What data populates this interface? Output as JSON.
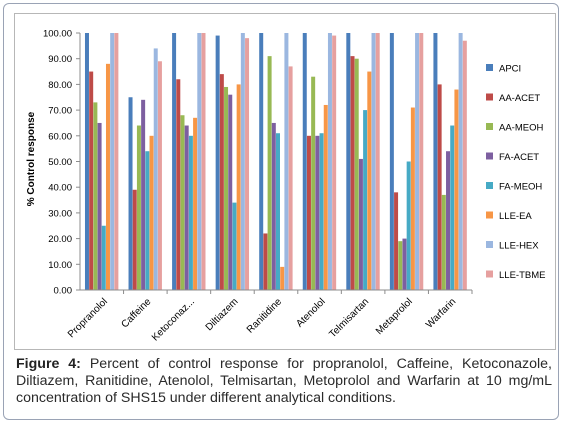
{
  "caption": {
    "label": "Figure 4:",
    "text": "Percent of control response for propranolol, Caffeine, Ketoconazole, Diltiazem, Ranitidine, Atenolol, Telmisartan, Metoprolol and Warfarin at 10 mg/mL concentration of SHS15 under different analytical conditions."
  },
  "chart_data": {
    "type": "bar",
    "ylabel": "% Control response",
    "xlabel": "",
    "title": "",
    "ylim": [
      0,
      100
    ],
    "yticks": [
      "0.00",
      "10.00",
      "20.00",
      "30.00",
      "40.00",
      "50.00",
      "60.00",
      "70.00",
      "80.00",
      "90.00",
      "100.00"
    ],
    "grid": false,
    "legend_position": "right",
    "categories": [
      "Propranolol",
      "Caffeine",
      "Ketoconaz...",
      "Diltiazem",
      "Ranitidine",
      "Atenolol",
      "Telmisartan",
      "Metaprolol",
      "Warfarin"
    ],
    "series": [
      {
        "name": "APCI",
        "color": "#4a7ebb",
        "values": [
          100,
          75,
          100,
          99,
          100,
          100,
          100,
          100,
          100
        ]
      },
      {
        "name": "AA-ACET",
        "color": "#be4b48",
        "values": [
          85,
          39,
          82,
          84,
          22,
          60,
          91,
          38,
          80
        ]
      },
      {
        "name": "AA-MEOH",
        "color": "#98b954",
        "values": [
          73,
          64,
          68,
          79,
          91,
          83,
          90,
          19,
          37
        ]
      },
      {
        "name": "FA-ACET",
        "color": "#7d5fa0",
        "values": [
          65,
          74,
          64,
          76,
          65,
          60,
          51,
          20,
          54
        ]
      },
      {
        "name": "FA-MEOH",
        "color": "#46aac5",
        "values": [
          25,
          54,
          60,
          34,
          61,
          61,
          70,
          50,
          64
        ]
      },
      {
        "name": "LLE-EA",
        "color": "#f79646",
        "values": [
          88,
          60,
          67,
          80,
          9,
          72,
          85,
          71,
          78
        ]
      },
      {
        "name": "LLE-HEX",
        "color": "#9bb7e0",
        "values": [
          100,
          94,
          100,
          100,
          100,
          100,
          100,
          100,
          100
        ]
      },
      {
        "name": "LLE-TBME",
        "color": "#e6a09f",
        "values": [
          100,
          89,
          100,
          98,
          87,
          99,
          100,
          100,
          97
        ]
      }
    ]
  }
}
